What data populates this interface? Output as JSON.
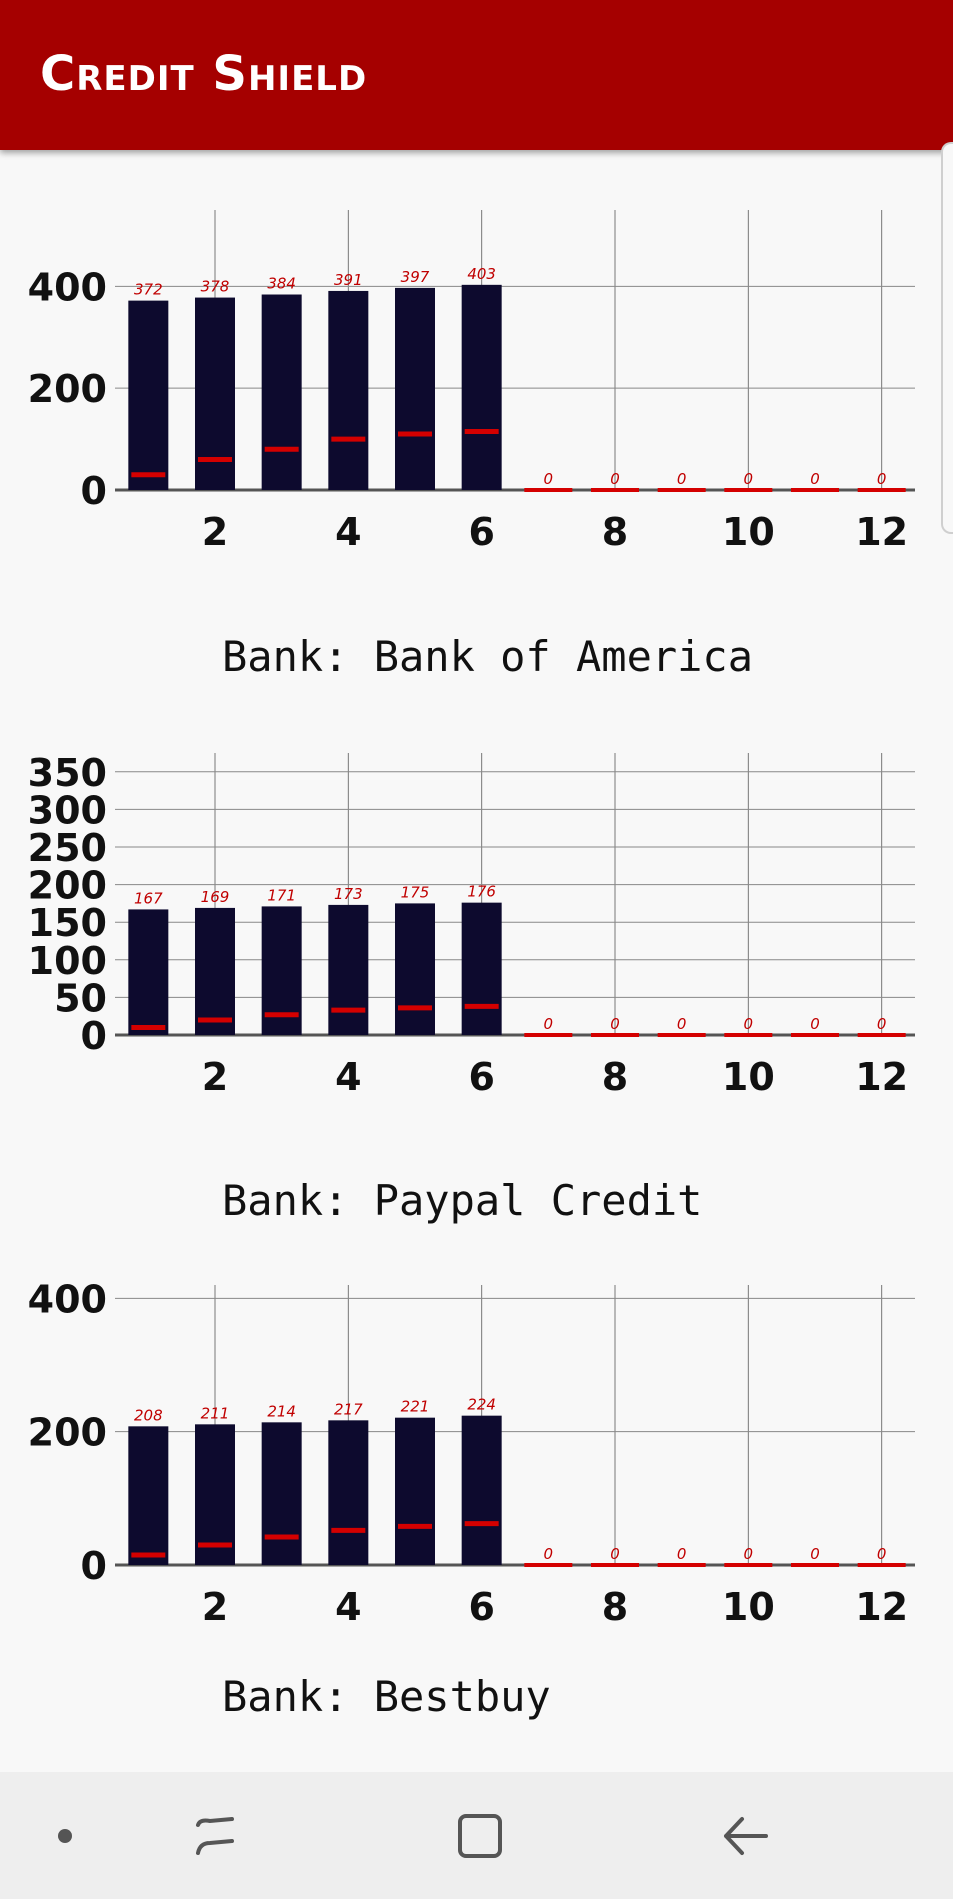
{
  "app": {
    "title": "Credit Shield"
  },
  "colors": {
    "appbar": "#a50000",
    "bar": "#0d0a2e",
    "marker": "#d40000",
    "label": "#c00000",
    "grid": "#555555"
  },
  "banks": [
    {
      "label": "Bank: Bank of America"
    },
    {
      "label": "Bank: Paypal Credit"
    },
    {
      "label": "Bank: Bestbuy"
    }
  ],
  "chart_data": [
    {
      "type": "bar",
      "x": [
        1,
        2,
        3,
        4,
        5,
        6,
        7,
        8,
        9,
        10,
        11,
        12
      ],
      "x_ticks": [
        2,
        4,
        6,
        8,
        10,
        12
      ],
      "series": [
        {
          "values": [
            372,
            378,
            384,
            391,
            397,
            403,
            0,
            0,
            0,
            0,
            0,
            0
          ]
        },
        {
          "values": [
            30,
            60,
            80,
            100,
            110,
            115,
            0,
            0,
            0,
            0,
            0,
            0
          ]
        }
      ],
      "data_labels": [
        "372",
        "378",
        "384",
        "391",
        "397",
        "403",
        "0",
        "0",
        "0",
        "0",
        "0",
        "0"
      ],
      "y_ticks": [
        0,
        200,
        400
      ],
      "ylim": [
        0,
        550
      ],
      "grid": true
    },
    {
      "type": "bar",
      "x": [
        1,
        2,
        3,
        4,
        5,
        6,
        7,
        8,
        9,
        10,
        11,
        12
      ],
      "x_ticks": [
        2,
        4,
        6,
        8,
        10,
        12
      ],
      "series": [
        {
          "values": [
            167,
            169,
            171,
            173,
            175,
            176,
            0,
            0,
            0,
            0,
            0,
            0
          ]
        },
        {
          "values": [
            10,
            20,
            27,
            33,
            36,
            38,
            0,
            0,
            0,
            0,
            0,
            0
          ]
        }
      ],
      "data_labels": [
        "167",
        "169",
        "171",
        "173",
        "175",
        "176",
        "0",
        "0",
        "0",
        "0",
        "0",
        "0"
      ],
      "y_ticks": [
        0,
        50,
        100,
        150,
        200,
        250,
        300,
        350
      ],
      "ylim": [
        0,
        375
      ],
      "grid": true
    },
    {
      "type": "bar",
      "x": [
        1,
        2,
        3,
        4,
        5,
        6,
        7,
        8,
        9,
        10,
        11,
        12
      ],
      "x_ticks": [
        2,
        4,
        6,
        8,
        10,
        12
      ],
      "series": [
        {
          "values": [
            208,
            211,
            214,
            217,
            221,
            224,
            0,
            0,
            0,
            0,
            0,
            0
          ]
        },
        {
          "values": [
            15,
            30,
            42,
            52,
            58,
            62,
            0,
            0,
            0,
            0,
            0,
            0
          ]
        }
      ],
      "data_labels": [
        "208",
        "211",
        "214",
        "217",
        "221",
        "224",
        "0",
        "0",
        "0",
        "0",
        "0",
        "0"
      ],
      "y_ticks": [
        0,
        200,
        400
      ],
      "ylim": [
        0,
        420
      ],
      "grid": true
    }
  ],
  "navbar": {
    "icons": [
      "dot-icon",
      "recent-apps-icon",
      "home-icon",
      "back-icon"
    ]
  }
}
